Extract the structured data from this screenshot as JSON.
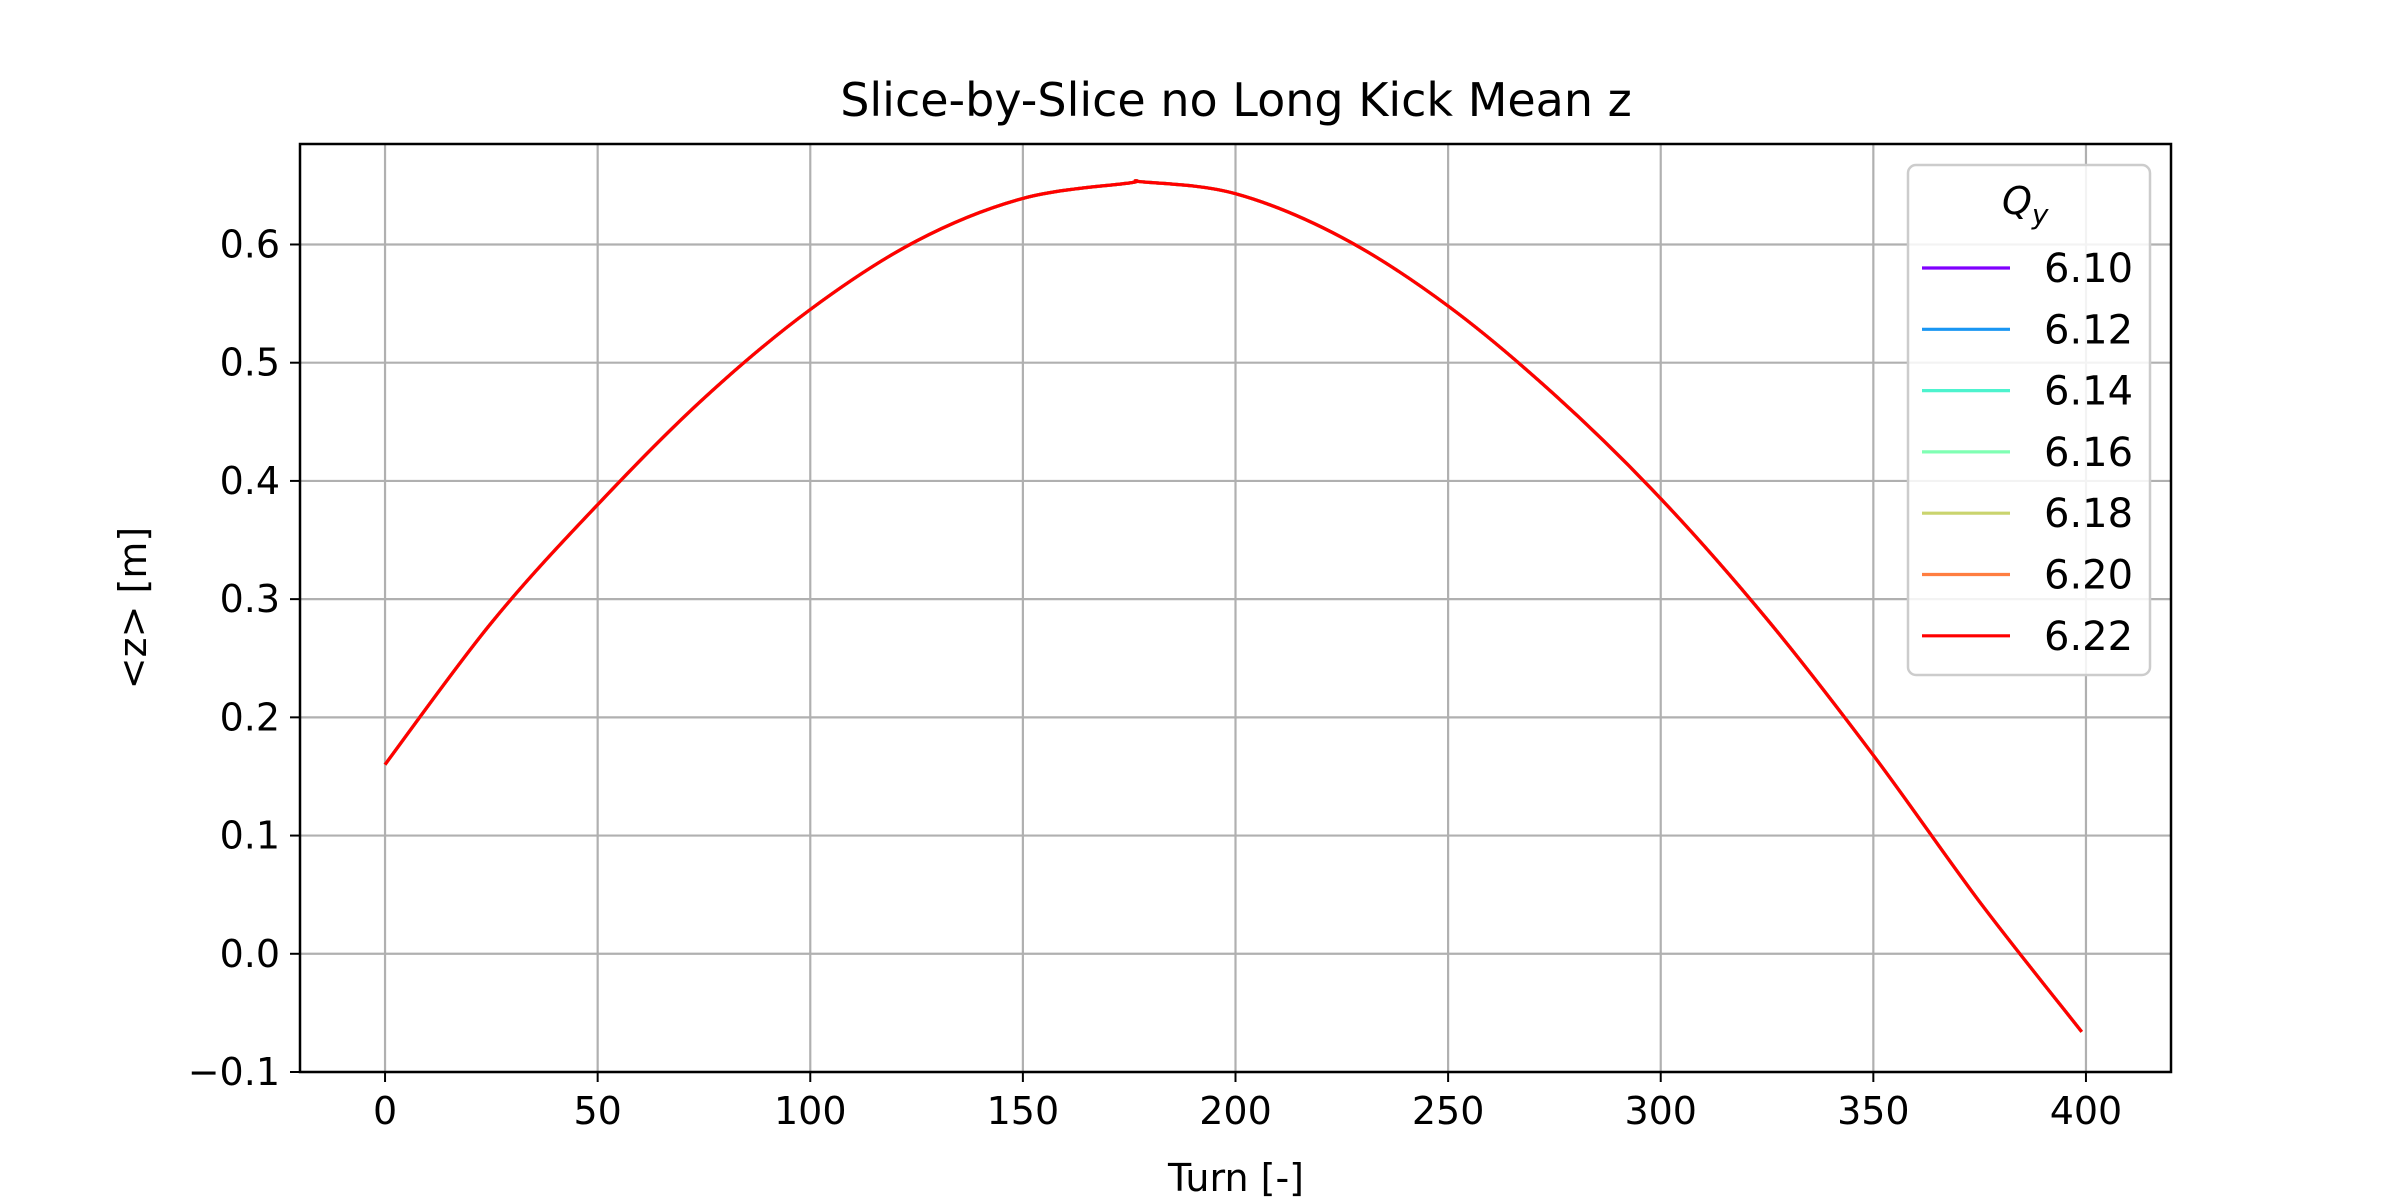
{
  "chart_data": {
    "type": "line",
    "title": "Slice-by-Slice no Long Kick Mean z",
    "xlabel": "Turn [-]",
    "ylabel": "<z> [m]",
    "xlim": [
      -20,
      420
    ],
    "ylim": [
      -0.1,
      0.685
    ],
    "xticks": [
      0,
      50,
      100,
      150,
      200,
      250,
      300,
      350,
      400
    ],
    "xtick_labels": [
      "0",
      "50",
      "100",
      "150",
      "200",
      "250",
      "300",
      "350",
      "400"
    ],
    "yticks": [
      -0.1,
      0.0,
      0.1,
      0.2,
      0.3,
      0.4,
      0.5,
      0.6
    ],
    "ytick_labels": [
      "−0.1",
      "0.0",
      "0.1",
      "0.2",
      "0.3",
      "0.4",
      "0.5",
      "0.6"
    ],
    "grid": true,
    "legend": {
      "title_main": "Q",
      "title_sub": "y",
      "placement": "top-right"
    },
    "x": [
      0,
      25,
      50,
      75,
      100,
      125,
      150,
      175,
      178,
      200,
      225,
      250,
      275,
      300,
      325,
      350,
      375,
      399
    ],
    "series": [
      {
        "name": "6.10",
        "color": "#8000ff",
        "values": [
          0.16,
          0.28,
          0.38,
          0.47,
          0.545,
          0.603,
          0.639,
          0.652,
          0.653,
          0.643,
          0.606,
          0.548,
          0.473,
          0.385,
          0.283,
          0.168,
          0.044,
          -0.066
        ]
      },
      {
        "name": "6.12",
        "color": "#1996f3",
        "values": [
          0.16,
          0.28,
          0.38,
          0.47,
          0.545,
          0.603,
          0.639,
          0.652,
          0.653,
          0.643,
          0.606,
          0.548,
          0.473,
          0.385,
          0.283,
          0.168,
          0.044,
          -0.066
        ]
      },
      {
        "name": "6.14",
        "color": "#4df3ce",
        "values": [
          0.16,
          0.28,
          0.38,
          0.47,
          0.545,
          0.603,
          0.639,
          0.652,
          0.653,
          0.643,
          0.606,
          0.548,
          0.473,
          0.385,
          0.283,
          0.168,
          0.044,
          -0.066
        ]
      },
      {
        "name": "6.16",
        "color": "#80ffb4",
        "values": [
          0.16,
          0.28,
          0.38,
          0.47,
          0.545,
          0.603,
          0.639,
          0.652,
          0.653,
          0.643,
          0.606,
          0.548,
          0.473,
          0.385,
          0.283,
          0.168,
          0.044,
          -0.066
        ]
      },
      {
        "name": "6.18",
        "color": "#cad46e",
        "values": [
          0.16,
          0.28,
          0.38,
          0.47,
          0.545,
          0.603,
          0.639,
          0.652,
          0.653,
          0.643,
          0.606,
          0.548,
          0.473,
          0.385,
          0.283,
          0.168,
          0.044,
          -0.066
        ]
      },
      {
        "name": "6.20",
        "color": "#ff7e41",
        "values": [
          0.16,
          0.28,
          0.38,
          0.47,
          0.545,
          0.603,
          0.639,
          0.652,
          0.653,
          0.643,
          0.606,
          0.548,
          0.473,
          0.385,
          0.283,
          0.168,
          0.044,
          -0.066
        ]
      },
      {
        "name": "6.22",
        "color": "#ff0000",
        "values": [
          0.16,
          0.28,
          0.38,
          0.47,
          0.545,
          0.603,
          0.639,
          0.652,
          0.653,
          0.643,
          0.606,
          0.548,
          0.473,
          0.385,
          0.283,
          0.168,
          0.044,
          -0.066
        ]
      }
    ]
  }
}
